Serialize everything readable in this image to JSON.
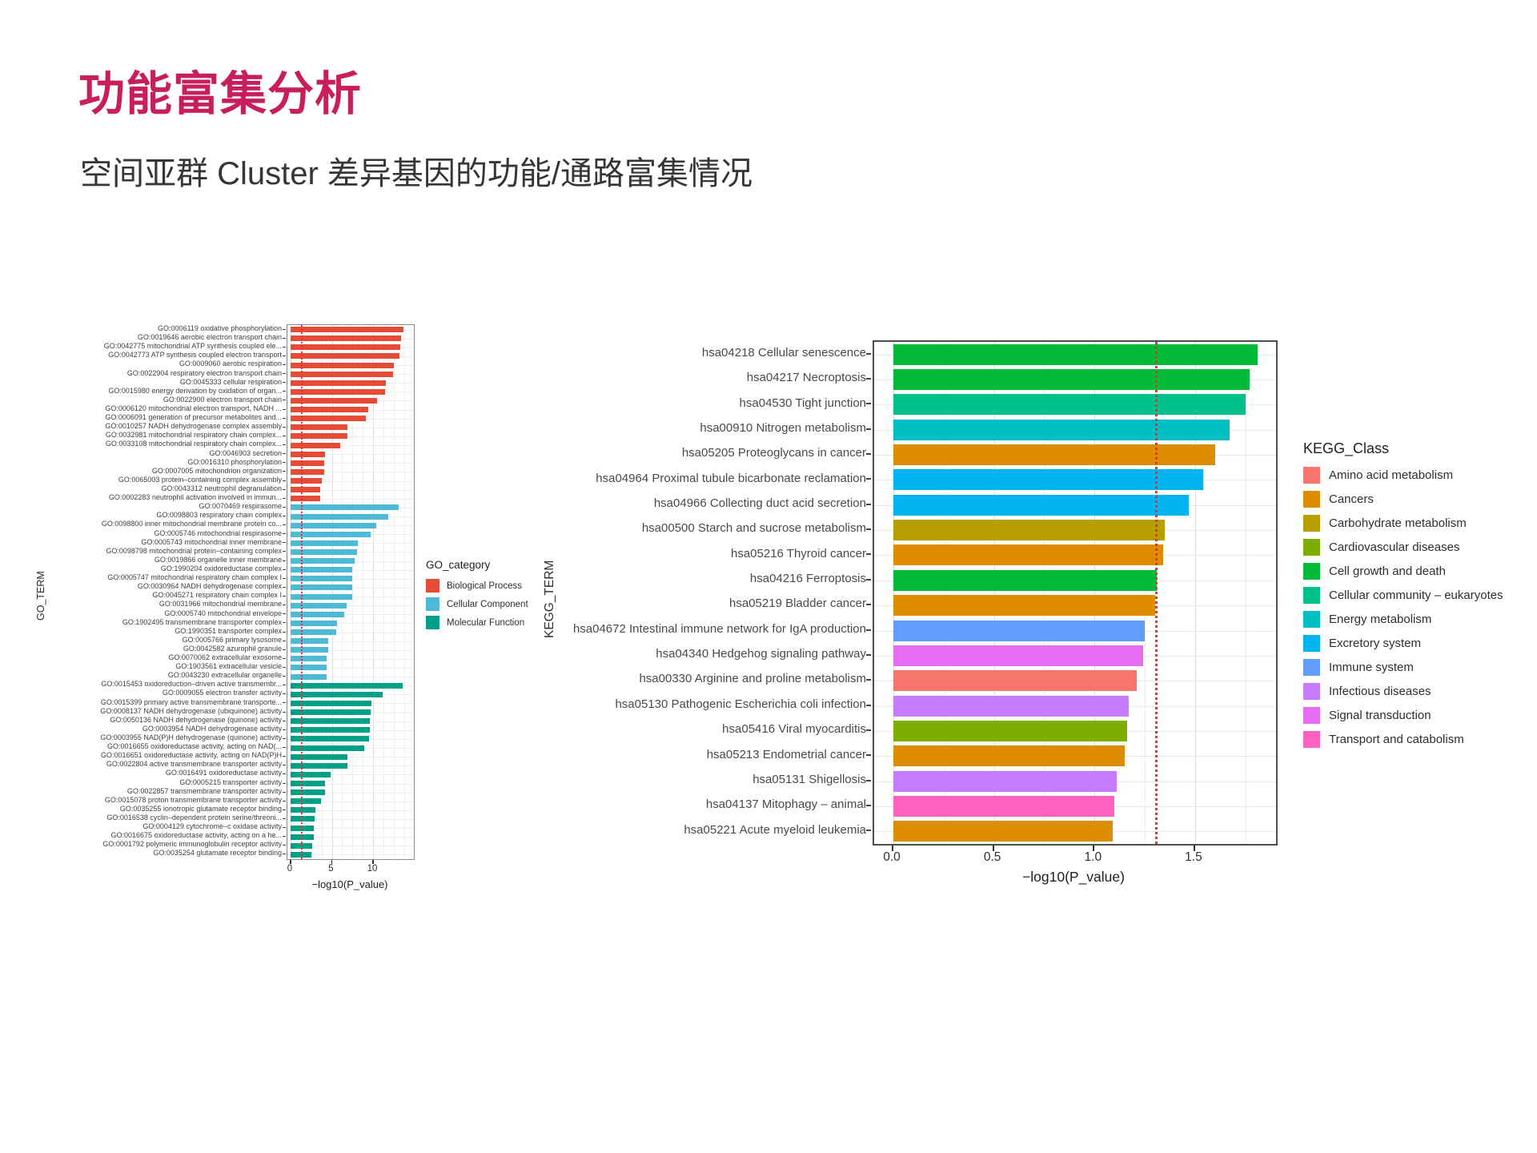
{
  "title": "功能富集分析",
  "subtitle": "空间亚群 Cluster 差异基因的功能/通路富集情况",
  "title_color": "#C81E5B",
  "threshold_color": "#e8332a",
  "chart_data": [
    {
      "id": "go",
      "type": "bar",
      "orientation": "horizontal",
      "xlabel": "−log10(P_value)",
      "ylabel": "GO_TERM",
      "xlim": [
        0,
        14.8
      ],
      "grid": true,
      "threshold": 1.3,
      "xticks": [
        {
          "label": "0",
          "value": 0
        },
        {
          "label": "5",
          "value": 5
        },
        {
          "label": "10",
          "value": 10
        }
      ],
      "legend": {
        "title": "GO_category",
        "position": "right",
        "items": [
          {
            "name": "Biological Process",
            "color": "#E64B35"
          },
          {
            "name": "Cellular Component",
            "color": "#4DBBD5"
          },
          {
            "name": "Molecular Function",
            "color": "#00A087"
          }
        ]
      },
      "bars": [
        {
          "label": "GO:0006119 oxidative phosphorylation",
          "value": 13.7,
          "category": "Biological Process"
        },
        {
          "label": "GO:0019646 aerobic electron transport chain",
          "value": 13.4,
          "category": "Biological Process"
        },
        {
          "label": "GO:0042775 mitochondrial ATP synthesis coupled ele...",
          "value": 13.3,
          "category": "Biological Process"
        },
        {
          "label": "GO:0042773 ATP synthesis coupled electron transport",
          "value": 13.2,
          "category": "Biological Process"
        },
        {
          "label": "GO:0009060 aerobic respiration",
          "value": 12.5,
          "category": "Biological Process"
        },
        {
          "label": "GO:0022904 respiratory electron transport chain",
          "value": 12.4,
          "category": "Biological Process"
        },
        {
          "label": "GO:0045333 cellular respiration",
          "value": 11.6,
          "category": "Biological Process"
        },
        {
          "label": "GO:0015980 energy derivation by oxidation of organ...",
          "value": 11.5,
          "category": "Biological Process"
        },
        {
          "label": "GO:0022900 electron transport chain",
          "value": 10.5,
          "category": "Biological Process"
        },
        {
          "label": "GO:0006120 mitochondrial electron transport, NADH ...",
          "value": 9.4,
          "category": "Biological Process"
        },
        {
          "label": "GO:0006091 generation of precursor metabolites and...",
          "value": 9.1,
          "category": "Biological Process"
        },
        {
          "label": "GO:0010257 NADH dehydrogenase complex assembly",
          "value": 6.9,
          "category": "Biological Process"
        },
        {
          "label": "GO:0032981 mitochondrial respiratory chain complex...",
          "value": 6.9,
          "category": "Biological Process"
        },
        {
          "label": "GO:0033108 mitochondrial respiratory chain complex...",
          "value": 6.0,
          "category": "Biological Process"
        },
        {
          "label": "GO:0046903 secretion",
          "value": 4.2,
          "category": "Biological Process"
        },
        {
          "label": "GO:0016310 phosphorylation",
          "value": 4.1,
          "category": "Biological Process"
        },
        {
          "label": "GO:0007005 mitochondrion organization",
          "value": 4.1,
          "category": "Biological Process"
        },
        {
          "label": "GO:0065003 protein–containing complex assembly",
          "value": 3.8,
          "category": "Biological Process"
        },
        {
          "label": "GO:0043312 neutrophil degranulation",
          "value": 3.6,
          "category": "Biological Process"
        },
        {
          "label": "GO:0002283 neutrophil activation involved in immun...",
          "value": 3.6,
          "category": "Biological Process"
        },
        {
          "label": "GO:0070469 respirasome",
          "value": 13.1,
          "category": "Cellular Component"
        },
        {
          "label": "GO:0098803 respiratory chain complex",
          "value": 11.8,
          "category": "Cellular Component"
        },
        {
          "label": "GO:0098800 inner mitochondrial membrane protein co...",
          "value": 10.4,
          "category": "Cellular Component"
        },
        {
          "label": "GO:0005746 mitochondrial respirasome",
          "value": 9.7,
          "category": "Cellular Component"
        },
        {
          "label": "GO:0005743 mitochondrial inner membrane",
          "value": 8.2,
          "category": "Cellular Component"
        },
        {
          "label": "GO:0098798 mitochondrial protein–containing complex",
          "value": 8.1,
          "category": "Cellular Component"
        },
        {
          "label": "GO:0019866 organelle inner membrane",
          "value": 7.8,
          "category": "Cellular Component"
        },
        {
          "label": "GO:1990204 oxidoreductase complex",
          "value": 7.5,
          "category": "Cellular Component"
        },
        {
          "label": "GO:0005747 mitochondrial respiratory chain complex I",
          "value": 7.5,
          "category": "Cellular Component"
        },
        {
          "label": "GO:0030964 NADH dehydrogenase complex",
          "value": 7.5,
          "category": "Cellular Component"
        },
        {
          "label": "GO:0045271 respiratory chain complex I",
          "value": 7.5,
          "category": "Cellular Component"
        },
        {
          "label": "GO:0031966 mitochondrial membrane",
          "value": 6.8,
          "category": "Cellular Component"
        },
        {
          "label": "GO:0005740 mitochondrial envelope",
          "value": 6.5,
          "category": "Cellular Component"
        },
        {
          "label": "GO:1902495 transmembrane transporter complex",
          "value": 5.6,
          "category": "Cellular Component"
        },
        {
          "label": "GO:1990351 transporter complex",
          "value": 5.5,
          "category": "Cellular Component"
        },
        {
          "label": "GO:0005766 primary lysosome",
          "value": 4.6,
          "category": "Cellular Component"
        },
        {
          "label": "GO:0042582 azurophil granule",
          "value": 4.6,
          "category": "Cellular Component"
        },
        {
          "label": "GO:0070062 extracellular exosome",
          "value": 4.4,
          "category": "Cellular Component"
        },
        {
          "label": "GO:1903561 extracellular vesicle",
          "value": 4.4,
          "category": "Cellular Component"
        },
        {
          "label": "GO:0043230 extracellular organelle",
          "value": 4.4,
          "category": "Cellular Component"
        },
        {
          "label": "GO:0015453 oxidoreduction–driven active transmembr...",
          "value": 13.6,
          "category": "Molecular Function"
        },
        {
          "label": "GO:0009055 electron transfer activity",
          "value": 11.2,
          "category": "Molecular Function"
        },
        {
          "label": "GO:0015399 primary active transmembrane transporte...",
          "value": 9.8,
          "category": "Molecular Function"
        },
        {
          "label": "GO:0008137 NADH dehydrogenase (ubiquinone) activity",
          "value": 9.7,
          "category": "Molecular Function"
        },
        {
          "label": "GO:0050136 NADH dehydrogenase (quinone) activity",
          "value": 9.6,
          "category": "Molecular Function"
        },
        {
          "label": "GO:0003954 NADH dehydrogenase activity",
          "value": 9.6,
          "category": "Molecular Function"
        },
        {
          "label": "GO:0003955 NAD(P)H dehydrogenase (quinone) activity",
          "value": 9.5,
          "category": "Molecular Function"
        },
        {
          "label": "GO:0016655 oxidoreductase activity, acting on NAD(...",
          "value": 8.9,
          "category": "Molecular Function"
        },
        {
          "label": "GO:0016651 oxidoreductase activity, acting on NAD(P)H",
          "value": 6.9,
          "category": "Molecular Function"
        },
        {
          "label": "GO:0022804 active transmembrane transporter activity",
          "value": 6.9,
          "category": "Molecular Function"
        },
        {
          "label": "GO:0016491 oxidoreductase activity",
          "value": 4.9,
          "category": "Molecular Function"
        },
        {
          "label": "GO:0005215 transporter activity",
          "value": 4.2,
          "category": "Molecular Function"
        },
        {
          "label": "GO:0022857 transmembrane transporter activity",
          "value": 4.2,
          "category": "Molecular Function"
        },
        {
          "label": "GO:0015078 proton transmembrane transporter activity",
          "value": 3.7,
          "category": "Molecular Function"
        },
        {
          "label": "GO:0035255 ionotropic glutamate receptor binding",
          "value": 3.0,
          "category": "Molecular Function"
        },
        {
          "label": "GO:0016538 cyclin–dependent protein serine/threoni...",
          "value": 2.9,
          "category": "Molecular Function"
        },
        {
          "label": "GO:0004129 cytochrome–c oxidase activity",
          "value": 2.8,
          "category": "Molecular Function"
        },
        {
          "label": "GO:0016675 oxidoreductase activity, acting on a he...",
          "value": 2.8,
          "category": "Molecular Function"
        },
        {
          "label": "GO:0001792 polymeric immunoglobulin receptor activity",
          "value": 2.6,
          "category": "Molecular Function"
        },
        {
          "label": "GO:0035254 glutamate receptor binding",
          "value": 2.5,
          "category": "Molecular Function"
        }
      ]
    },
    {
      "id": "kegg",
      "type": "bar",
      "orientation": "horizontal",
      "xlabel": "−log10(P_value)",
      "ylabel": "KEGG_TERM",
      "xlim": [
        0,
        1.9
      ],
      "grid": true,
      "threshold": 1.3,
      "xticks": [
        {
          "label": "0.0",
          "value": 0
        },
        {
          "label": "0.5",
          "value": 0.5
        },
        {
          "label": "1.0",
          "value": 1.0
        },
        {
          "label": "1.5",
          "value": 1.5
        }
      ],
      "legend": {
        "title": "KEGG_Class",
        "position": "right",
        "items": [
          {
            "name": "Amino acid metabolism",
            "color": "#F8766D"
          },
          {
            "name": "Cancers",
            "color": "#DE8C00"
          },
          {
            "name": "Carbohydrate metabolism",
            "color": "#B79F00"
          },
          {
            "name": "Cardiovascular diseases",
            "color": "#7CAE00"
          },
          {
            "name": "Cell growth and death",
            "color": "#00BA38"
          },
          {
            "name": "Cellular community – eukaryotes",
            "color": "#00C08B"
          },
          {
            "name": "Energy metabolism",
            "color": "#00BFC4"
          },
          {
            "name": "Excretory system",
            "color": "#00B4F0"
          },
          {
            "name": "Immune system",
            "color": "#619CFF"
          },
          {
            "name": "Infectious diseases",
            "color": "#C77CFF"
          },
          {
            "name": "Signal transduction",
            "color": "#E76BF3"
          },
          {
            "name": "Transport and catabolism",
            "color": "#FF61C3"
          }
        ]
      },
      "bars": [
        {
          "label": "hsa04218 Cellular senescence",
          "value": 1.81,
          "category": "Cell growth and death"
        },
        {
          "label": "hsa04217 Necroptosis",
          "value": 1.77,
          "category": "Cell growth and death"
        },
        {
          "label": "hsa04530 Tight junction",
          "value": 1.75,
          "category": "Cellular community – eukaryotes"
        },
        {
          "label": "hsa00910 Nitrogen metabolism",
          "value": 1.67,
          "category": "Energy metabolism"
        },
        {
          "label": "hsa05205 Proteoglycans in cancer",
          "value": 1.6,
          "category": "Cancers"
        },
        {
          "label": "hsa04964 Proximal tubule bicarbonate reclamation",
          "value": 1.54,
          "category": "Excretory system"
        },
        {
          "label": "hsa04966 Collecting duct acid secretion",
          "value": 1.47,
          "category": "Excretory system"
        },
        {
          "label": "hsa00500 Starch and sucrose metabolism",
          "value": 1.35,
          "category": "Carbohydrate metabolism"
        },
        {
          "label": "hsa05216 Thyroid cancer",
          "value": 1.34,
          "category": "Cancers"
        },
        {
          "label": "hsa04216 Ferroptosis",
          "value": 1.31,
          "category": "Cell growth and death"
        },
        {
          "label": "hsa05219 Bladder cancer",
          "value": 1.3,
          "category": "Cancers"
        },
        {
          "label": "hsa04672 Intestinal immune network for IgA production",
          "value": 1.25,
          "category": "Immune system"
        },
        {
          "label": "hsa04340 Hedgehog signaling pathway",
          "value": 1.24,
          "category": "Signal transduction"
        },
        {
          "label": "hsa00330 Arginine and proline metabolism",
          "value": 1.21,
          "category": "Amino acid metabolism"
        },
        {
          "label": "hsa05130 Pathogenic Escherichia coli infection",
          "value": 1.17,
          "category": "Infectious diseases"
        },
        {
          "label": "hsa05416 Viral myocarditis",
          "value": 1.16,
          "category": "Cardiovascular diseases"
        },
        {
          "label": "hsa05213 Endometrial cancer",
          "value": 1.15,
          "category": "Cancers"
        },
        {
          "label": "hsa05131 Shigellosis",
          "value": 1.11,
          "category": "Infectious diseases"
        },
        {
          "label": "hsa04137 Mitophagy – animal",
          "value": 1.1,
          "category": "Transport and catabolism"
        },
        {
          "label": "hsa05221 Acute myeloid leukemia",
          "value": 1.09,
          "category": "Cancers"
        }
      ]
    }
  ]
}
